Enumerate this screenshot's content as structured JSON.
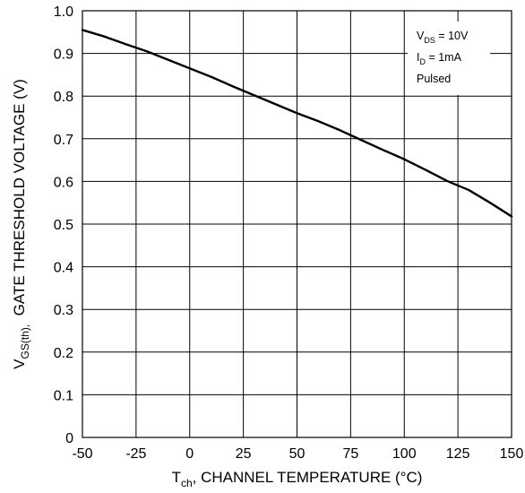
{
  "chart_data": {
    "type": "line",
    "xlabel": {
      "main": "T",
      "sub": "ch",
      "rest": ", CHANNEL TEMPERATURE (°C)"
    },
    "ylabel": {
      "main": "V",
      "sub": "GS(th),",
      "rest": "  GATE THRESHOLD VOLTAGE (V)"
    },
    "xlim": [
      -50,
      150
    ],
    "ylim": [
      0,
      1.0
    ],
    "x_ticks": [
      "-50",
      "-25",
      "0",
      "25",
      "50",
      "75",
      "100",
      "125",
      "150"
    ],
    "y_ticks": [
      "0",
      "0.1",
      "0.2",
      "0.3",
      "0.4",
      "0.5",
      "0.6",
      "0.7",
      "0.8",
      "0.9",
      "1.0"
    ],
    "grid": true,
    "legend": {
      "placement": "top-right",
      "lines": [
        {
          "main": "V",
          "sub": "DS",
          "rest": " = 10V"
        },
        {
          "main": "I",
          "sub": "D",
          "rest": " = 1mA"
        },
        {
          "main": "Pulsed",
          "sub": "",
          "rest": ""
        }
      ]
    },
    "series": [
      {
        "x": [
          -50,
          -40,
          -30,
          -20,
          -10,
          0,
          10,
          20,
          30,
          40,
          50,
          60,
          70,
          80,
          90,
          100,
          110,
          120,
          130,
          140,
          150
        ],
        "y": [
          0.955,
          0.94,
          0.922,
          0.905,
          0.885,
          0.865,
          0.845,
          0.823,
          0.802,
          0.781,
          0.76,
          0.741,
          0.72,
          0.697,
          0.674,
          0.652,
          0.627,
          0.601,
          0.58,
          0.55,
          0.518
        ]
      }
    ]
  }
}
